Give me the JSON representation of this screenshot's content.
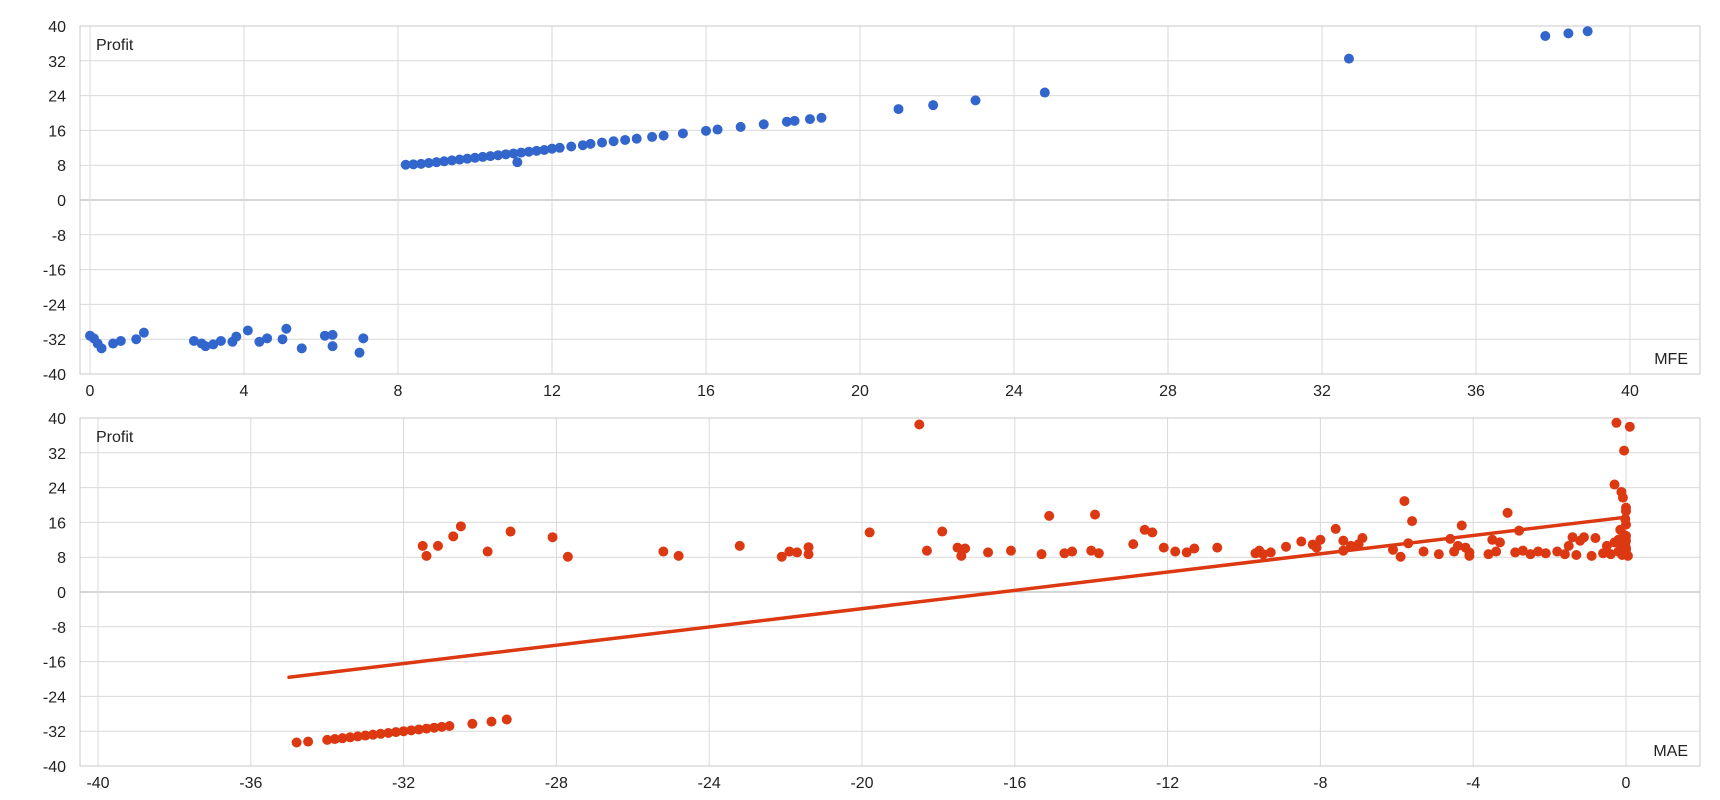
{
  "colors": {
    "mfe": "#3366cc",
    "mae": "#dc3912"
  },
  "chart_data": [
    {
      "type": "scatter",
      "title": "",
      "ylabel": "Profit",
      "xlabel": "MFE",
      "xlim": [
        0,
        40
      ],
      "ylim": [
        -40,
        40
      ],
      "xticks": [
        "0",
        "4",
        "8",
        "12",
        "16",
        "20",
        "24",
        "28",
        "32",
        "36",
        "40"
      ],
      "yticks": [
        "40",
        "32",
        "24",
        "16",
        "8",
        "0",
        "-8",
        "-16",
        "-24",
        "-32",
        "-40"
      ],
      "grid": true,
      "series": [
        {
          "points": [
            [
              0.0,
              -31.2
            ],
            [
              0.1,
              -31.8
            ],
            [
              0.2,
              -33.0
            ],
            [
              0.3,
              -34.1
            ],
            [
              0.6,
              -33.0
            ],
            [
              0.8,
              -32.4
            ],
            [
              1.2,
              -32.0
            ],
            [
              1.4,
              -30.5
            ],
            [
              2.7,
              -32.4
            ],
            [
              2.9,
              -33.0
            ],
            [
              3.0,
              -33.6
            ],
            [
              3.2,
              -33.2
            ],
            [
              3.4,
              -32.4
            ],
            [
              3.7,
              -32.6
            ],
            [
              3.8,
              -31.4
            ],
            [
              4.1,
              -30.0
            ],
            [
              4.4,
              -32.6
            ],
            [
              4.6,
              -31.8
            ],
            [
              5.0,
              -32.0
            ],
            [
              5.1,
              -29.6
            ],
            [
              5.5,
              -34.1
            ],
            [
              6.1,
              -31.2
            ],
            [
              6.3,
              -31.0
            ],
            [
              6.3,
              -33.6
            ],
            [
              7.0,
              -35.1
            ],
            [
              7.1,
              -31.8
            ],
            [
              8.2,
              8.1
            ],
            [
              8.4,
              8.2
            ],
            [
              8.6,
              8.3
            ],
            [
              8.8,
              8.5
            ],
            [
              9.0,
              8.7
            ],
            [
              9.2,
              8.9
            ],
            [
              9.4,
              9.1
            ],
            [
              9.6,
              9.3
            ],
            [
              9.8,
              9.5
            ],
            [
              10.0,
              9.7
            ],
            [
              10.2,
              9.9
            ],
            [
              10.4,
              10.1
            ],
            [
              10.6,
              10.3
            ],
            [
              10.8,
              10.5
            ],
            [
              11.0,
              10.7
            ],
            [
              11.1,
              8.7
            ],
            [
              11.2,
              10.9
            ],
            [
              11.4,
              11.1
            ],
            [
              11.6,
              11.3
            ],
            [
              11.8,
              11.5
            ],
            [
              12.0,
              11.8
            ],
            [
              12.2,
              12.0
            ],
            [
              12.5,
              12.3
            ],
            [
              12.8,
              12.6
            ],
            [
              13.0,
              12.9
            ],
            [
              13.3,
              13.2
            ],
            [
              13.6,
              13.5
            ],
            [
              13.9,
              13.8
            ],
            [
              14.2,
              14.1
            ],
            [
              14.6,
              14.5
            ],
            [
              14.9,
              14.8
            ],
            [
              15.4,
              15.3
            ],
            [
              16.0,
              15.9
            ],
            [
              16.3,
              16.2
            ],
            [
              16.9,
              16.8
            ],
            [
              17.5,
              17.4
            ],
            [
              18.1,
              18.0
            ],
            [
              18.3,
              18.2
            ],
            [
              18.7,
              18.6
            ],
            [
              19.0,
              18.9
            ],
            [
              21.0,
              20.9
            ],
            [
              21.9,
              21.8
            ],
            [
              23.0,
              22.9
            ],
            [
              24.8,
              24.7
            ],
            [
              32.7,
              32.5
            ],
            [
              37.8,
              37.7
            ],
            [
              38.4,
              38.3
            ],
            [
              38.9,
              38.8
            ]
          ]
        }
      ]
    },
    {
      "type": "scatter",
      "title": "",
      "ylabel": "Profit",
      "xlabel": "MAE",
      "xlim": [
        -40,
        0
      ],
      "ylim": [
        -40,
        40
      ],
      "xticks": [
        "-40",
        "-36",
        "-32",
        "-28",
        "-24",
        "-20",
        "-16",
        "-12",
        "-8",
        "-4",
        "0"
      ],
      "yticks": [
        "40",
        "32",
        "24",
        "16",
        "8",
        "0",
        "-8",
        "-16",
        "-24",
        "-32",
        "-40"
      ],
      "grid": true,
      "trendline": {
        "x": [
          -35.0,
          0.0
        ],
        "y": [
          -19.6,
          17.2
        ]
      },
      "series": [
        {
          "points": [
            [
              -34.8,
              -34.6
            ],
            [
              -34.5,
              -34.4
            ],
            [
              -34.0,
              -34.0
            ],
            [
              -33.8,
              -33.8
            ],
            [
              -33.6,
              -33.6
            ],
            [
              -33.4,
              -33.4
            ],
            [
              -33.2,
              -33.2
            ],
            [
              -33.0,
              -33.0
            ],
            [
              -32.8,
              -32.8
            ],
            [
              -32.6,
              -32.6
            ],
            [
              -32.4,
              -32.4
            ],
            [
              -32.2,
              -32.2
            ],
            [
              -32.0,
              -32.0
            ],
            [
              -31.8,
              -31.8
            ],
            [
              -31.6,
              -31.6
            ],
            [
              -31.4,
              -31.4
            ],
            [
              -31.2,
              -31.2
            ],
            [
              -31.0,
              -31.0
            ],
            [
              -30.8,
              -30.8
            ],
            [
              -30.2,
              -30.3
            ],
            [
              -29.7,
              -29.8
            ],
            [
              -29.3,
              -29.3
            ],
            [
              -31.5,
              10.6
            ],
            [
              -31.4,
              8.3
            ],
            [
              -31.1,
              10.6
            ],
            [
              -30.7,
              12.8
            ],
            [
              -30.5,
              15.1
            ],
            [
              -29.8,
              9.3
            ],
            [
              -29.2,
              13.9
            ],
            [
              -28.1,
              12.6
            ],
            [
              -27.7,
              8.1
            ],
            [
              -25.2,
              9.3
            ],
            [
              -24.8,
              8.3
            ],
            [
              -23.2,
              10.6
            ],
            [
              -22.1,
              8.1
            ],
            [
              -21.9,
              9.3
            ],
            [
              -21.7,
              9.1
            ],
            [
              -21.4,
              10.3
            ],
            [
              -21.4,
              8.7
            ],
            [
              -19.8,
              13.7
            ],
            [
              -18.5,
              38.5
            ],
            [
              -18.3,
              9.5
            ],
            [
              -17.9,
              13.9
            ],
            [
              -17.5,
              10.2
            ],
            [
              -17.4,
              8.3
            ],
            [
              -17.3,
              10.0
            ],
            [
              -16.7,
              9.1
            ],
            [
              -16.1,
              9.5
            ],
            [
              -15.3,
              8.7
            ],
            [
              -15.1,
              17.5
            ],
            [
              -14.7,
              8.9
            ],
            [
              -14.5,
              9.3
            ],
            [
              -14.0,
              9.5
            ],
            [
              -13.9,
              17.8
            ],
            [
              -13.8,
              8.9
            ],
            [
              -12.9,
              11.0
            ],
            [
              -12.6,
              14.3
            ],
            [
              -12.4,
              13.7
            ],
            [
              -12.1,
              10.2
            ],
            [
              -11.8,
              9.3
            ],
            [
              -11.5,
              9.1
            ],
            [
              -11.3,
              10.0
            ],
            [
              -10.7,
              10.2
            ],
            [
              -9.7,
              8.9
            ],
            [
              -9.6,
              9.5
            ],
            [
              -9.5,
              8.7
            ],
            [
              -9.3,
              9.1
            ],
            [
              -8.9,
              10.4
            ],
            [
              -8.5,
              11.6
            ],
            [
              -8.2,
              10.9
            ],
            [
              -8.1,
              10.2
            ],
            [
              -8.0,
              12.0
            ],
            [
              -7.6,
              14.5
            ],
            [
              -7.4,
              9.5
            ],
            [
              -7.4,
              11.8
            ],
            [
              -7.2,
              10.6
            ],
            [
              -7.0,
              11.0
            ],
            [
              -6.9,
              12.4
            ],
            [
              -6.1,
              9.7
            ],
            [
              -5.9,
              8.1
            ],
            [
              -5.8,
              20.9
            ],
            [
              -5.7,
              11.2
            ],
            [
              -5.6,
              16.3
            ],
            [
              -5.3,
              9.3
            ],
            [
              -4.9,
              8.7
            ],
            [
              -4.6,
              12.2
            ],
            [
              -4.5,
              9.3
            ],
            [
              -4.4,
              10.6
            ],
            [
              -4.3,
              15.3
            ],
            [
              -4.2,
              10.2
            ],
            [
              -4.1,
              9.1
            ],
            [
              -4.1,
              8.3
            ],
            [
              -3.6,
              8.7
            ],
            [
              -3.5,
              12.0
            ],
            [
              -3.4,
              9.3
            ],
            [
              -3.3,
              11.4
            ],
            [
              -3.1,
              18.2
            ],
            [
              -2.9,
              9.1
            ],
            [
              -2.8,
              14.1
            ],
            [
              -2.7,
              9.5
            ],
            [
              -2.5,
              8.7
            ],
            [
              -2.3,
              9.3
            ],
            [
              -2.1,
              8.9
            ],
            [
              -1.8,
              9.3
            ],
            [
              -1.6,
              8.7
            ],
            [
              -1.5,
              10.6
            ],
            [
              -1.4,
              12.6
            ],
            [
              -1.3,
              8.5
            ],
            [
              -1.2,
              11.8
            ],
            [
              -1.1,
              12.6
            ],
            [
              -0.9,
              8.3
            ],
            [
              -0.8,
              12.4
            ],
            [
              -0.6,
              8.9
            ],
            [
              -0.5,
              10.6
            ],
            [
              -0.4,
              8.7
            ],
            [
              -0.3,
              11.4
            ],
            [
              -0.3,
              24.7
            ],
            [
              -0.25,
              38.9
            ],
            [
              -0.2,
              12.0
            ],
            [
              -0.2,
              9.3
            ],
            [
              -0.15,
              14.3
            ],
            [
              -0.12,
              23.0
            ],
            [
              -0.1,
              10.6
            ],
            [
              -0.1,
              8.5
            ],
            [
              -0.08,
              21.7
            ],
            [
              -0.05,
              32.5
            ],
            [
              -0.05,
              13.1
            ],
            [
              -0.03,
              9.1
            ],
            [
              -0.02,
              16.8
            ],
            [
              -0.02,
              11.2
            ],
            [
              0.0,
              18.6
            ],
            [
              0.0,
              10.2
            ],
            [
              0.0,
              8.9
            ],
            [
              0.0,
              15.5
            ],
            [
              0.0,
              12.9
            ],
            [
              0.0,
              19.4
            ],
            [
              0.0,
              11.8
            ],
            [
              0.0,
              9.7
            ],
            [
              0.1,
              38.0
            ],
            [
              0.05,
              8.3
            ]
          ]
        }
      ]
    }
  ]
}
